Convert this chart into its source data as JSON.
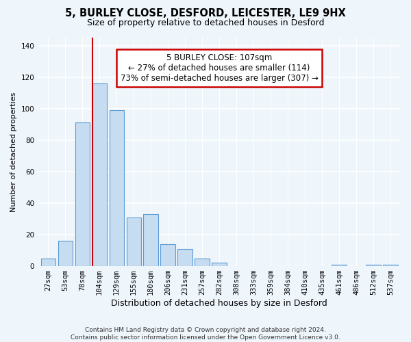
{
  "title1": "5, BURLEY CLOSE, DESFORD, LEICESTER, LE9 9HX",
  "title2": "Size of property relative to detached houses in Desford",
  "xlabel": "Distribution of detached houses by size in Desford",
  "ylabel": "Number of detached properties",
  "bar_labels": [
    "27sqm",
    "53sqm",
    "78sqm",
    "104sqm",
    "129sqm",
    "155sqm",
    "180sqm",
    "206sqm",
    "231sqm",
    "257sqm",
    "282sqm",
    "308sqm",
    "333sqm",
    "359sqm",
    "384sqm",
    "410sqm",
    "435sqm",
    "461sqm",
    "486sqm",
    "512sqm",
    "537sqm"
  ],
  "bar_heights": [
    5,
    16,
    91,
    116,
    99,
    31,
    33,
    14,
    11,
    5,
    2,
    0,
    0,
    0,
    0,
    0,
    0,
    1,
    0,
    1,
    1
  ],
  "bar_color": "#c6dcf0",
  "bar_edge_color": "#5b9bd5",
  "vline_bar_index": 3,
  "vline_color": "#cc0000",
  "annotation_title": "5 BURLEY CLOSE: 107sqm",
  "annotation_line1": "← 27% of detached houses are smaller (114)",
  "annotation_line2": "73% of semi-detached houses are larger (307) →",
  "annotation_box_color": "#ffffff",
  "annotation_box_edge": "#cc0000",
  "ylim": [
    0,
    145
  ],
  "yticks": [
    0,
    20,
    40,
    60,
    80,
    100,
    120,
    140
  ],
  "footer1": "Contains HM Land Registry data © Crown copyright and database right 2024.",
  "footer2": "Contains public sector information licensed under the Open Government Licence v3.0.",
  "bg_color": "#eef5fb",
  "grid_color": "#ffffff",
  "title1_fontsize": 10.5,
  "title2_fontsize": 9,
  "ylabel_fontsize": 8,
  "xlabel_fontsize": 9,
  "tick_fontsize": 7.5,
  "footer_fontsize": 6.5
}
